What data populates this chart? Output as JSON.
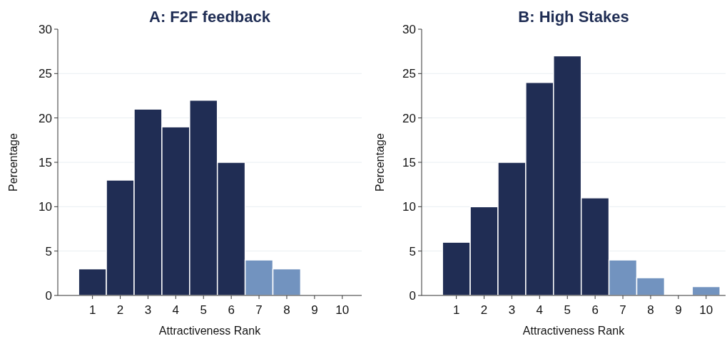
{
  "chart_data": [
    {
      "type": "bar",
      "title": "A: F2F feedback",
      "xlabel": "Attractiveness Rank",
      "ylabel": "Percentage",
      "x": [
        1,
        2,
        3,
        4,
        5,
        6,
        7,
        8,
        9,
        10
      ],
      "values": [
        3,
        13,
        21,
        19,
        22,
        15,
        4,
        3,
        0,
        0
      ],
      "colors": [
        "#202d54",
        "#202d54",
        "#202d54",
        "#202d54",
        "#202d54",
        "#202d54",
        "#7293bf",
        "#7293bf",
        "#7293bf",
        "#7293bf"
      ],
      "xlim": [
        -0.25,
        10.7
      ],
      "xticks": [
        1,
        2,
        3,
        4,
        5,
        6,
        7,
        8,
        9,
        10
      ],
      "ylim": [
        0,
        30
      ],
      "yticks": [
        0,
        5,
        10,
        15,
        20,
        25,
        30
      ],
      "grid": "y"
    },
    {
      "type": "bar",
      "title": "B: High Stakes",
      "xlabel": "Attractiveness Rank",
      "ylabel": "Percentage",
      "x": [
        1,
        2,
        3,
        4,
        5,
        6,
        7,
        8,
        9,
        10
      ],
      "values": [
        6,
        10,
        15,
        24,
        27,
        11,
        4,
        2,
        0,
        1
      ],
      "colors": [
        "#202d54",
        "#202d54",
        "#202d54",
        "#202d54",
        "#202d54",
        "#202d54",
        "#7293bf",
        "#7293bf",
        "#7293bf",
        "#7293bf"
      ],
      "xlim": [
        -0.25,
        10.7
      ],
      "xticks": [
        1,
        2,
        3,
        4,
        5,
        6,
        7,
        8,
        9,
        10
      ],
      "ylim": [
        0,
        30
      ],
      "yticks": [
        0,
        5,
        10,
        15,
        20,
        25,
        30
      ],
      "grid": "y"
    }
  ]
}
